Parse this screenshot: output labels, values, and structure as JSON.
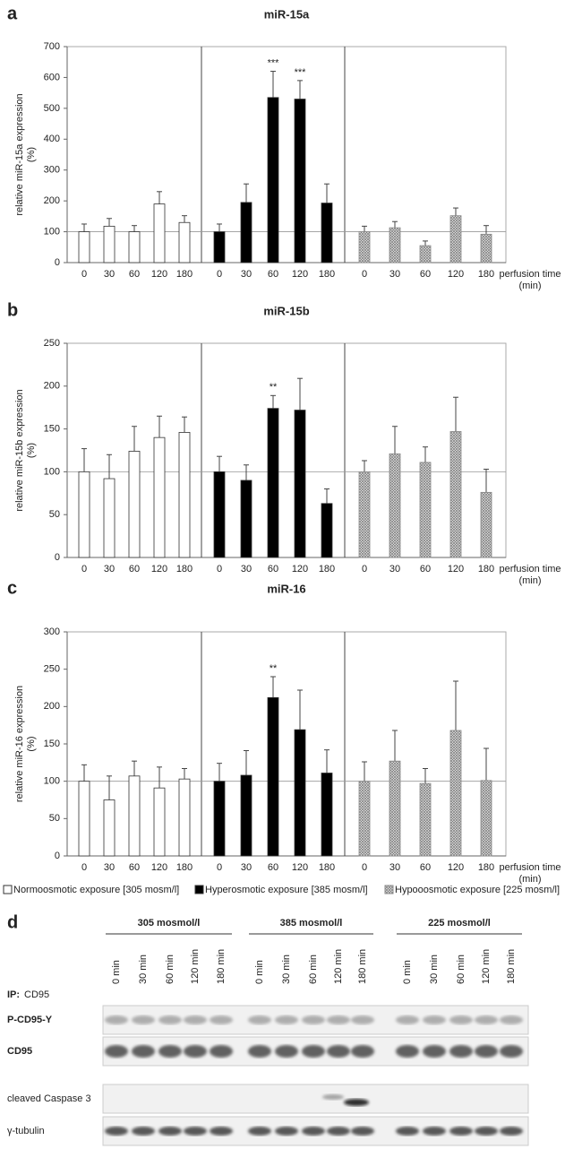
{
  "chart_data": [
    {
      "type": "bar",
      "panel": "a",
      "title": "miR-15a",
      "ylabel": [
        "relative miR-15a expression",
        "(%)"
      ],
      "xlabel": [
        "perfusion time",
        "(min)"
      ],
      "categories": [
        "0",
        "30",
        "60",
        "120",
        "180"
      ],
      "ylim": [
        0,
        700
      ],
      "yticks": [
        0,
        100,
        200,
        300,
        400,
        500,
        600,
        700
      ],
      "hline": 100,
      "series": [
        {
          "color": "#ffffff",
          "values": [
            100,
            118,
            100,
            190,
            130
          ],
          "errors": [
            25,
            25,
            20,
            40,
            22
          ]
        },
        {
          "color": "#000000",
          "values": [
            100,
            195,
            535,
            530,
            193
          ],
          "errors": [
            25,
            60,
            85,
            60,
            62
          ],
          "annotations": [
            null,
            null,
            "***",
            "***",
            null
          ]
        },
        {
          "color": "#888888",
          "pattern": "crosshatch",
          "values": [
            100,
            113,
            55,
            152,
            92
          ],
          "errors": [
            18,
            20,
            15,
            25,
            28
          ]
        }
      ]
    },
    {
      "type": "bar",
      "panel": "b",
      "title": "miR-15b",
      "ylabel": [
        "relative miR-15b expression",
        "(%)"
      ],
      "xlabel": [
        "perfusion time",
        "(min)"
      ],
      "categories": [
        "0",
        "30",
        "60",
        "120",
        "180"
      ],
      "ylim": [
        0,
        250
      ],
      "yticks": [
        0,
        50,
        100,
        150,
        200,
        250
      ],
      "hline": 100,
      "series": [
        {
          "color": "#ffffff",
          "values": [
            100,
            92,
            124,
            140,
            146
          ],
          "errors": [
            27,
            28,
            29,
            25,
            18
          ]
        },
        {
          "color": "#000000",
          "values": [
            100,
            90,
            174,
            172,
            63
          ],
          "errors": [
            18,
            18,
            15,
            37,
            17
          ],
          "annotations": [
            null,
            null,
            "**",
            null,
            null
          ]
        },
        {
          "color": "#888888",
          "pattern": "crosshatch",
          "values": [
            100,
            121,
            111,
            147,
            76
          ],
          "errors": [
            13,
            32,
            18,
            40,
            27
          ]
        }
      ]
    },
    {
      "type": "bar",
      "panel": "c",
      "title": "miR-16",
      "ylabel": [
        "relative miR-16 expression",
        "(%)"
      ],
      "xlabel": [
        "perfusion time",
        "(min)"
      ],
      "categories": [
        "0",
        "30",
        "60",
        "120",
        "180"
      ],
      "ylim": [
        0,
        300
      ],
      "yticks": [
        0,
        50,
        100,
        150,
        200,
        250,
        300
      ],
      "hline": 100,
      "series": [
        {
          "name": "Normoosmotic exposure [305 mosm/l]",
          "color": "#ffffff",
          "values": [
            100,
            75,
            107,
            91,
            103
          ],
          "errors": [
            22,
            32,
            20,
            28,
            14
          ]
        },
        {
          "name": "Hyperosmotic exposure [385 mosm/l]",
          "color": "#000000",
          "values": [
            100,
            108,
            212,
            169,
            111
          ],
          "errors": [
            24,
            33,
            28,
            53,
            31
          ],
          "annotations": [
            null,
            null,
            "**",
            null,
            null
          ]
        },
        {
          "name": "Hypooosmotic exposure [225 mosm/l]",
          "color": "#888888",
          "pattern": "crosshatch",
          "values": [
            100,
            127,
            97,
            168,
            101
          ],
          "errors": [
            26,
            41,
            20,
            66,
            43
          ]
        }
      ]
    }
  ],
  "blot": {
    "panel": "d",
    "conditions": [
      "305 mosmol/l",
      "385 mosmol/l",
      "225 mosmol/l"
    ],
    "lanes": [
      "0 min",
      "30 min",
      "60 min",
      "120 min",
      "180 min"
    ],
    "ip_label": "IP:",
    "ip_target": "CD95",
    "rows": [
      "P-CD95-Y",
      "CD95",
      "cleaved Caspase 3",
      "γ-tubulin"
    ]
  }
}
